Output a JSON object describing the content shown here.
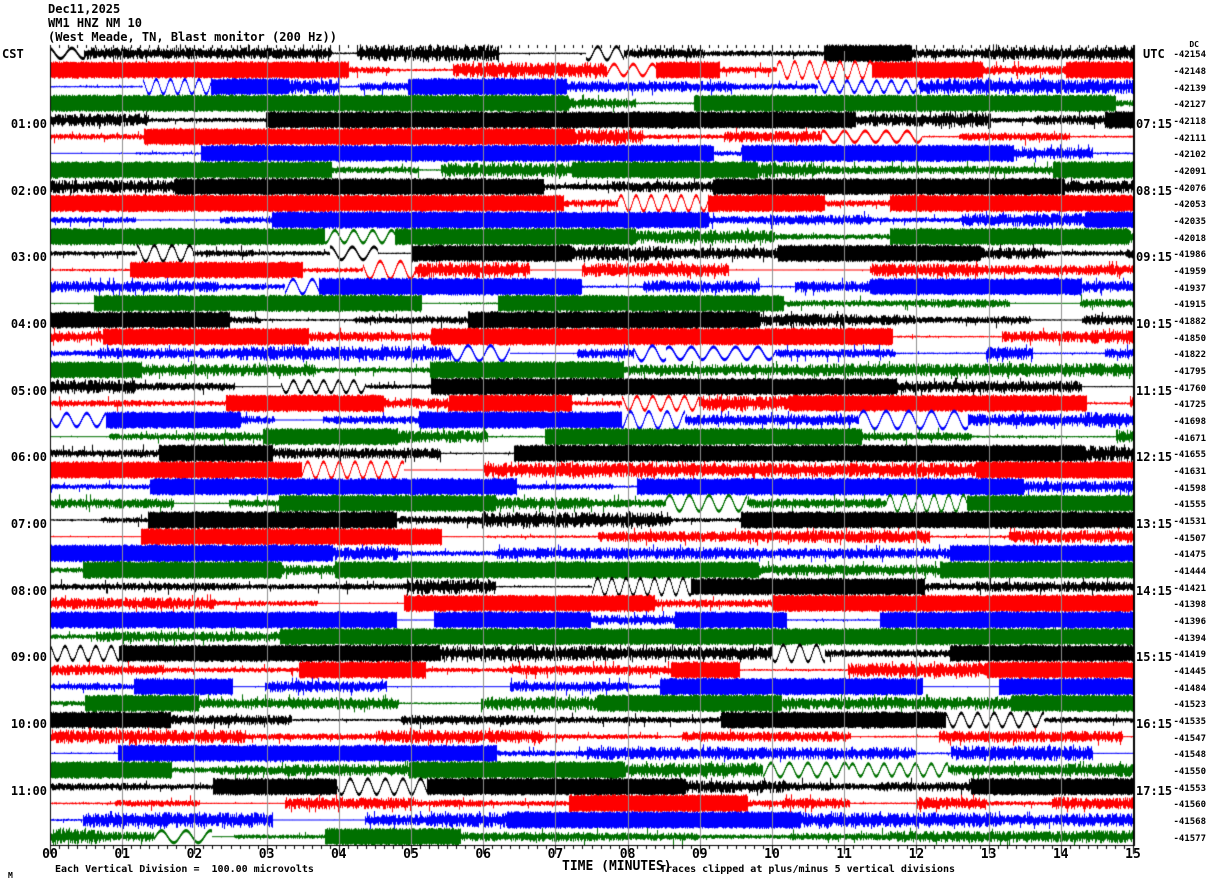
{
  "header": {
    "date": "Dec11,2025",
    "station_line": "WM1 HNZ NM 10",
    "location_line": "(West Meade, TN, Blast monitor (200 Hz))"
  },
  "axes": {
    "left_label": "CST",
    "right_label": "UTC",
    "dc_label": "DC",
    "x_label": "TIME (MINUTES)"
  },
  "footer": {
    "mark": "M",
    "scale_note": "Each Vertical Division =  100.00 microvolts",
    "clip_note": "Traces clipped at plus/minus 5 vertical divisions"
  },
  "chart_data": {
    "type": "line",
    "variant": "helicorder-seismogram",
    "title": "WM1 HNZ NM 10 (West Meade, TN, Blast monitor (200 Hz)) Dec11,2025",
    "xlabel": "TIME (MINUTES)",
    "x_tick_labels": [
      "00",
      "01",
      "02",
      "03",
      "04",
      "05",
      "06",
      "07",
      "08",
      "09",
      "10",
      "11",
      "12",
      "13",
      "14",
      "15"
    ],
    "x_range_minutes": [
      0,
      15
    ],
    "x_minor_ticks_per_minute": 8,
    "minutes_per_trace": 15,
    "trace_count": 48,
    "traces_per_hour": 4,
    "trace_color_cycle": [
      "#000000",
      "#ff0000",
      "#0000ff",
      "#007000"
    ],
    "grid_color": "#8f8f8f",
    "grid": "vertical line at every minute",
    "left_times_cst": [
      "01:00",
      "02:00",
      "03:00",
      "04:00",
      "05:00",
      "06:00",
      "07:00",
      "08:00",
      "09:00",
      "10:00",
      "11:00"
    ],
    "right_times_utc": [
      "07:15",
      "08:15",
      "09:15",
      "10:15",
      "11:15",
      "12:15",
      "13:15",
      "14:15",
      "15:15",
      "16:15",
      "17:15"
    ],
    "dc_offsets": [
      -42154,
      -42148,
      -42139,
      -42127,
      -42118,
      -42111,
      -42102,
      -42091,
      -42076,
      -42053,
      -42035,
      -42018,
      -41986,
      -41959,
      -41937,
      -41915,
      -41882,
      -41850,
      -41822,
      -41795,
      -41760,
      -41725,
      -41698,
      -41671,
      -41655,
      -41631,
      -41598,
      -41555,
      -41531,
      -41507,
      -41475,
      -41444,
      -41421,
      -41398,
      -41396,
      -41394,
      -41419,
      -41445,
      -41484,
      -41523,
      -41535,
      -41547,
      -41548,
      -41550,
      -41553,
      -41560,
      -41568,
      -41577
    ],
    "vertical_division_microvolts": 100.0,
    "clip_divisions": 5,
    "signal_description": "continuous 200 Hz seismic background noise with blast/burst events, traces heavily clipped at plus/minus 5 vertical divisions",
    "noise_seed": 20251211
  }
}
